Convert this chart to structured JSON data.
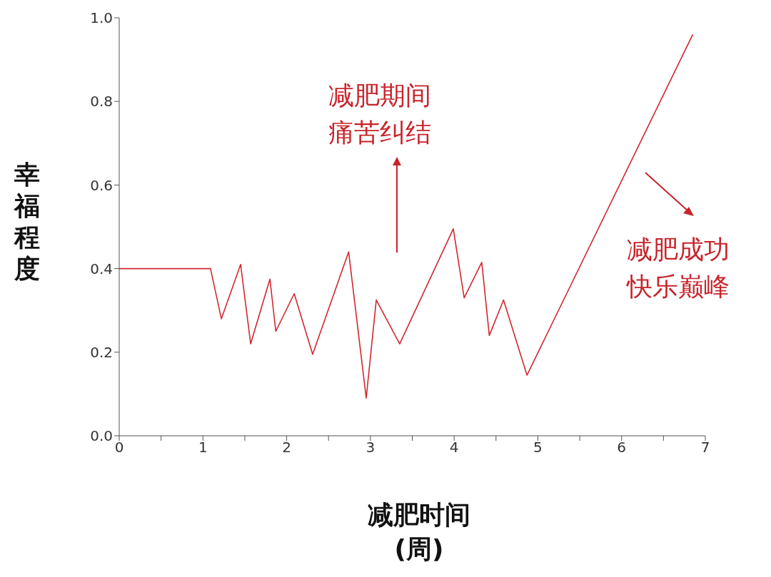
{
  "chart_data": {
    "type": "line",
    "xlabel": "减肥时间\n(周)",
    "ylabel": "幸福程度",
    "x": [
      0,
      1.09,
      1.22,
      1.45,
      1.57,
      1.8,
      1.87,
      2.09,
      2.31,
      2.74,
      2.95,
      3.07,
      3.35,
      3.99,
      4.12,
      4.33,
      4.42,
      4.59,
      4.87,
      6.85
    ],
    "series": [
      {
        "color": "#d2282e",
        "values": [
          0.4,
          0.4,
          0.28,
          0.41,
          0.22,
          0.375,
          0.25,
          0.34,
          0.195,
          0.44,
          0.09,
          0.325,
          0.22,
          0.495,
          0.33,
          0.415,
          0.24,
          0.325,
          0.145,
          0.96
        ]
      }
    ],
    "xlim": [
      0,
      7
    ],
    "ylim": [
      0,
      1
    ],
    "xticks": [
      0,
      {
        "value": 0.5,
        "label": null
      },
      1,
      {
        "value": 1.5,
        "label": null
      },
      2,
      {
        "value": 2.5,
        "label": null
      },
      3,
      {
        "value": 3.5,
        "label": null
      },
      4,
      {
        "value": 4.5,
        "label": null
      },
      5,
      {
        "value": 5.5,
        "label": null
      },
      6,
      {
        "value": 6.5,
        "label": null
      },
      7
    ],
    "yticks": [
      {
        "value": 0,
        "label": "0.0"
      },
      {
        "value": 0.2,
        "label": "0.2"
      },
      {
        "value": 0.4,
        "label": "0.4"
      },
      {
        "value": 0.6,
        "label": "0.6"
      },
      {
        "value": 0.8,
        "label": "0.8"
      },
      {
        "value": 1,
        "label": "1.0"
      }
    ],
    "annotations": [
      "减肥期间痛苦纠结",
      "减肥成功快乐巅峰"
    ],
    "grid": false,
    "legend": false,
    "marker": "none",
    "line_style": "solid"
  }
}
